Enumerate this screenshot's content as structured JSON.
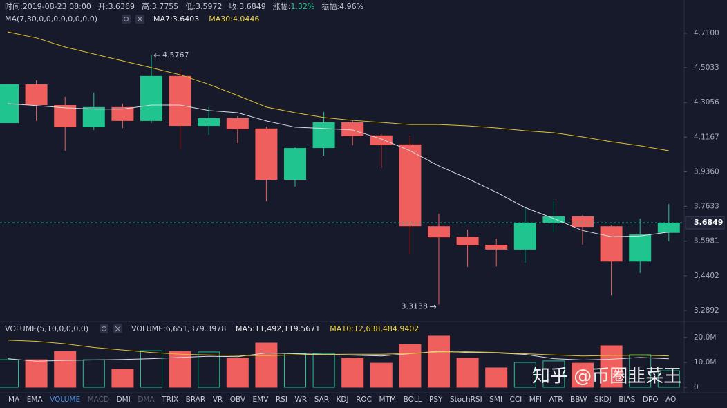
{
  "header": [
    {
      "label": "时间:",
      "value": "2019-08-23 08:00"
    },
    {
      "label": "开:",
      "value": "3.6369"
    },
    {
      "label": "高:",
      "value": "3.7755"
    },
    {
      "label": "低:",
      "value": "3.5972"
    },
    {
      "label": "收:",
      "value": "3.6849"
    },
    {
      "label": "涨幅:",
      "value": "1.32%",
      "color": "#1fc48e"
    },
    {
      "label": "振幅:",
      "value": "4.96%"
    }
  ],
  "chart_data": [
    {
      "type": "candlestick",
      "legend_title": "MA(7,30,0,0,0,0,0,0,0,0)",
      "up_color": "#1fc48e",
      "down_color": "#ef5f5e",
      "yscale": "log",
      "open": [
        4.192,
        4.408,
        4.291,
        4.17,
        4.28,
        4.204,
        4.456,
        4.177,
        4.219,
        4.163,
        3.895,
        4.059,
        4.196,
        4.126,
        4.078,
        3.668,
        3.619,
        3.581,
        3.559,
        3.685,
        3.715,
        3.668,
        3.504,
        3.6369
      ],
      "high": [
        4.408,
        4.432,
        4.338,
        4.361,
        4.299,
        4.5767,
        4.496,
        4.28,
        4.23,
        4.173,
        4.063,
        4.253,
        4.207,
        4.133,
        4.126,
        3.728,
        3.652,
        3.61,
        3.758,
        3.789,
        3.722,
        3.672,
        3.705,
        3.7755
      ],
      "low": [
        4.192,
        4.204,
        4.045,
        4.155,
        4.166,
        4.192,
        4.052,
        4.129,
        4.085,
        3.789,
        3.861,
        4.019,
        4.074,
        3.955,
        3.536,
        3.3138,
        3.48,
        3.482,
        3.498,
        3.639,
        3.581,
        3.354,
        3.452,
        3.5972
      ],
      "close": [
        4.408,
        4.291,
        4.17,
        4.28,
        4.204,
        4.456,
        4.177,
        4.219,
        4.159,
        3.895,
        4.059,
        4.196,
        4.122,
        4.074,
        3.668,
        3.616,
        3.578,
        3.559,
        3.685,
        3.715,
        3.665,
        3.504,
        3.629,
        3.6849
      ],
      "lines": [
        {
          "label": "MA7:3.6403",
          "color": "#d9dbe2",
          "legend_color": "#e8e8e8",
          "values": [
            4.299,
            4.288,
            4.276,
            4.269,
            4.269,
            4.291,
            4.291,
            4.261,
            4.249,
            4.204,
            4.17,
            4.163,
            4.155,
            4.107,
            4.045,
            3.966,
            3.902,
            3.833,
            3.758,
            3.705,
            3.648,
            3.619,
            3.622,
            3.6403
          ]
        },
        {
          "label": "MA30:4.0446",
          "color": "#e2c12c",
          "legend_color": "#f0d23a",
          "values": [
            4.718,
            4.681,
            4.626,
            4.585,
            4.544,
            4.504,
            4.463,
            4.408,
            4.345,
            4.28,
            4.249,
            4.223,
            4.207,
            4.196,
            4.184,
            4.184,
            4.177,
            4.166,
            4.151,
            4.14,
            4.118,
            4.092,
            4.071,
            4.0446
          ]
        }
      ],
      "ylim": [
        3.251,
        4.752
      ],
      "yticks": [
        {
          "value": 4.71,
          "label": "4.7100"
        },
        {
          "value": 4.5033,
          "label": "4.5033"
        },
        {
          "value": 4.3056,
          "label": "4.3056"
        },
        {
          "value": 4.1167,
          "label": "4.1167"
        },
        {
          "value": 3.936,
          "label": "3.9360"
        },
        {
          "value": 3.7633,
          "label": "3.7633"
        },
        {
          "value": 3.5981,
          "label": "3.5981"
        },
        {
          "value": 3.4402,
          "label": "3.4402"
        },
        {
          "value": 3.2892,
          "label": "3.2892"
        }
      ],
      "last_line_color": "#1ab79a"
    },
    {
      "type": "volume",
      "legend_title": "VOLUME(5,10,0,0,0,0)",
      "label": "VOLUME:6,651,379.3978",
      "up_color": "#1fc48e",
      "down_color": "#ef5f5e",
      "values": [
        11100000,
        11100000,
        14400000,
        11100000,
        7200000,
        14700000,
        14400000,
        14200000,
        11700000,
        17800000,
        13600000,
        13600000,
        11700000,
        9700000,
        17200000,
        20600000,
        11700000,
        7800000,
        10000000,
        10600000,
        9700000,
        16700000,
        13100000,
        6651379.3978
      ],
      "lines": [
        {
          "label": "MA5:11,492,119.5671",
          "color": "#d9dbe2",
          "legend_color": "#e8e8e8",
          "values": [
            11500000,
            10500000,
            10800000,
            11000000,
            11200000,
            11500000,
            12000000,
            12500000,
            12300000,
            13800000,
            13500000,
            13200000,
            12900000,
            12600000,
            13500000,
            14500000,
            14000000,
            13800000,
            13200000,
            11500000,
            11000000,
            11300000,
            12000000,
            11492119.5671
          ]
        },
        {
          "label": "MA10:12,638,484.9402",
          "color": "#e2c12c",
          "legend_color": "#f0d23a",
          "values": [
            19000000,
            18500000,
            17500000,
            16000000,
            15000000,
            14000000,
            13300000,
            13000000,
            12800000,
            12700000,
            13000000,
            13200000,
            13300000,
            13300000,
            13600000,
            14200000,
            14300000,
            14000000,
            13500000,
            13000000,
            12600000,
            12800000,
            12900000,
            12638484.9402
          ]
        }
      ],
      "ylim": [
        0,
        21700000
      ],
      "yticks": [
        0,
        {
          "value": 10000000,
          "label": "10.0M"
        },
        {
          "value": 20000000,
          "label": "20.0M"
        }
      ]
    }
  ],
  "indicator_tabs": [
    "MA",
    "EMA",
    "VOLUME",
    "MACD",
    "DMI",
    "DMA",
    "TRIX",
    "BRAR",
    "VR",
    "OBV",
    "EMV",
    "RSI",
    "WR",
    "SAR",
    "KDJ",
    "ROC",
    "MTM",
    "BOLL",
    "PSY",
    "StochRSI",
    "SMI",
    "CCI",
    "MFI",
    "ATR",
    "BBW",
    "SKDJ",
    "BIAS",
    "DPO",
    "AO"
  ],
  "active_tab": 2,
  "disabled_tabs": [
    3,
    5
  ],
  "active_tab_color": "#4a8fe7",
  "disabled_tab_color": "#5b5f6e",
  "watermark": "知乎 @币圈韭菜王"
}
